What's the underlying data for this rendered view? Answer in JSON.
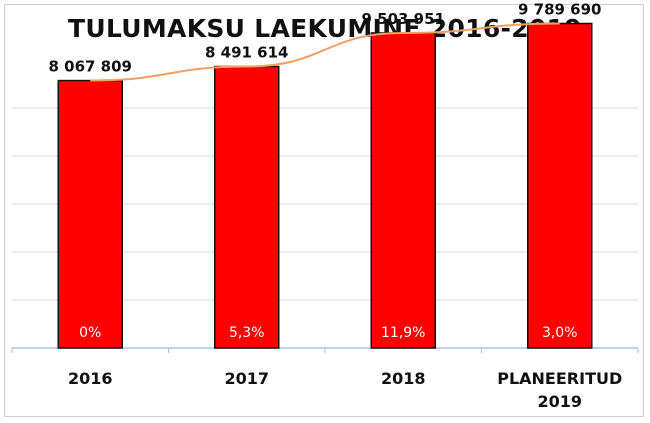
{
  "chart_data": {
    "type": "bar",
    "title": "TULUMAKSU LAEKUMINE 2016-2019",
    "categories": [
      [
        "2016"
      ],
      [
        "2017"
      ],
      [
        "2018"
      ],
      [
        "PLANEERITUD",
        "2019"
      ]
    ],
    "values": [
      8067809,
      8491614,
      9503951,
      9789690
    ],
    "value_labels": [
      "8 067 809",
      "8 491 614",
      "9 503 951",
      "9 789 690"
    ],
    "growth_labels": [
      "0%",
      "5,3%",
      "11,9%",
      "3,0%"
    ],
    "ylim": [
      0,
      10000000
    ],
    "grid": true,
    "trendline": true,
    "colors": {
      "bar": "#ff0000",
      "bar_border": "#111111",
      "trend": "#f0a060",
      "grid": "#d9d9d9",
      "axis": "#a9c4dd"
    }
  }
}
